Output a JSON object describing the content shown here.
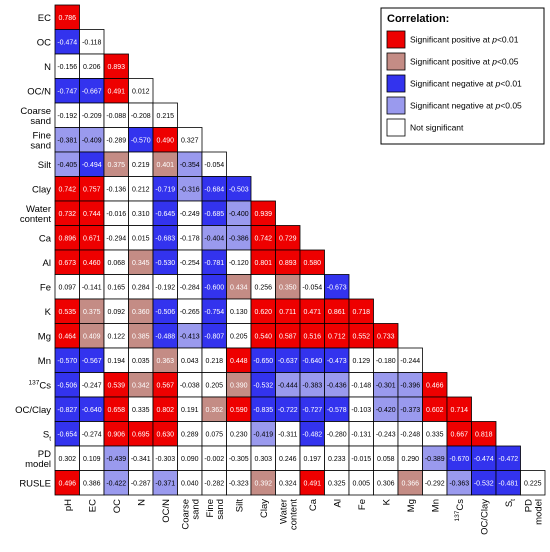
{
  "chart_data": {
    "type": "heatmap",
    "title": "",
    "row_labels": [
      "EC",
      "OC",
      "N",
      "OC/N",
      "Coarse sand",
      "Fine sand",
      "Silt",
      "Clay",
      "Water content",
      "Ca",
      "Al",
      "Fe",
      "K",
      "Mg",
      "Mn",
      "137Cs",
      "OC/Clay",
      "St",
      "PD model",
      "RUSLE"
    ],
    "col_labels": [
      "pH",
      "EC",
      "OC",
      "N",
      "OC/N",
      "Coarse sand",
      "Fine sand",
      "Silt",
      "Clay",
      "Water content",
      "Ca",
      "Al",
      "Fe",
      "K",
      "Mg",
      "Mn",
      "137Cs",
      "OC/Clay",
      "St",
      "PD model"
    ],
    "values": [
      [
        "0.786"
      ],
      [
        "-0.474",
        "-0.118"
      ],
      [
        "-0.156",
        "0.206",
        "0.893"
      ],
      [
        "-0.747",
        "-0.667",
        "0.491",
        "0.012"
      ],
      [
        "-0.192",
        "-0.209",
        "-0.088",
        "-0.208",
        "0.215"
      ],
      [
        "-0.381",
        "-0.409",
        "-0.289",
        "-0.570",
        "0.490",
        "0.327"
      ],
      [
        "-0.405",
        "-0.494",
        "0.375",
        "0.219",
        "0.401",
        "-0.354",
        "-0.054"
      ],
      [
        "0.742",
        "0.757",
        "-0.136",
        "0.212",
        "-0.719",
        "-0.316",
        "-0.684",
        "-0.503"
      ],
      [
        "0.732",
        "0.744",
        "-0.016",
        "0.310",
        "-0.645",
        "-0.249",
        "-0.685",
        "-0.400",
        "0.939"
      ],
      [
        "0.896",
        "0.671",
        "-0.294",
        "0.015",
        "-0.683",
        "-0.178",
        "-0.404",
        "-0.386",
        "0.742",
        "0.729"
      ],
      [
        "0.673",
        "0.460",
        "0.068",
        "0.345",
        "-0.530",
        "-0.254",
        "-0.781",
        "-0.120",
        "0.801",
        "0.893",
        "0.580"
      ],
      [
        "0.097",
        "-0.141",
        "0.165",
        "0.284",
        "-0.192",
        "-0.284",
        "-0.600",
        "0.434",
        "0.256",
        "0.350",
        "-0.054",
        "-0.673"
      ],
      [
        "0.535",
        "0.375",
        "0.092",
        "0.360",
        "-0.506",
        "-0.265",
        "-0.754",
        "0.130",
        "0.620",
        "0.711",
        "0.471",
        "0.861",
        "0.718"
      ],
      [
        "0.464",
        "0.409",
        "0.122",
        "0.385",
        "-0.488",
        "-0.413",
        "-0.807",
        "0.205",
        "0.540",
        "0.587",
        "0.516",
        "0.712",
        "0.552",
        "0.733"
      ],
      [
        "-0.570",
        "-0.567",
        "0.194",
        "0.035",
        "0.363",
        "0.043",
        "0.218",
        "0.448",
        "-0.650",
        "-0.637",
        "-0.640",
        "-0.473",
        "0.129",
        "-0.180",
        "-0.244"
      ],
      [
        "-0.506",
        "-0.247",
        "0.539",
        "0.342",
        "0.567",
        "-0.038",
        "0.205",
        "0.390",
        "-0.532",
        "-0.444",
        "-0.383",
        "-0.436",
        "-0.148",
        "-0.301",
        "-0.396",
        "0.466"
      ],
      [
        "-0.827",
        "-0.640",
        "0.658",
        "0.335",
        "0.802",
        "0.191",
        "0.362",
        "0.590",
        "-0.835",
        "-0.722",
        "-0.727",
        "-0.578",
        "-0.103",
        "-0.420",
        "-0.373",
        "0.602",
        "0.714"
      ],
      [
        "-0.654",
        "-0.274",
        "0.906",
        "0.695",
        "0.630",
        "0.289",
        "0.075",
        "0.230",
        "-0.419",
        "-0.311",
        "-0.482",
        "-0.280",
        "-0.131",
        "-0.243",
        "-0.248",
        "0.335",
        "0.667",
        "0.818"
      ],
      [
        "0.302",
        "0.109",
        "-0.439",
        "-0.341",
        "-0.303",
        "0.090",
        "-0.002",
        "-0.305",
        "0.303",
        "0.246",
        "0.197",
        "0.233",
        "-0.015",
        "0.058",
        "0.290",
        "-0.389",
        "-0.670",
        "-0.474",
        "-0.472"
      ],
      [
        "0.496",
        "0.386",
        "-0.422",
        "-0.287",
        "-0.371",
        "0.040",
        "-0.282",
        "-0.323",
        "0.392",
        "0.324",
        "0.491",
        "0.325",
        "0.005",
        "0.306",
        "0.366",
        "-0.292",
        "-0.363",
        "-0.532",
        "-0.481",
        "0.225"
      ]
    ],
    "significance": [
      [
        "P1"
      ],
      [
        "N1",
        "S"
      ],
      [
        "S",
        "S",
        "P1"
      ],
      [
        "N1",
        "N1",
        "P1",
        "S"
      ],
      [
        "S",
        "S",
        "S",
        "S",
        "S"
      ],
      [
        "N5",
        "N5",
        "S",
        "N1",
        "P1",
        "S"
      ],
      [
        "N5",
        "N1",
        "P5",
        "S",
        "P5",
        "N5",
        "S"
      ],
      [
        "P1",
        "P1",
        "S",
        "S",
        "N1",
        "N5",
        "N1",
        "N1"
      ],
      [
        "P1",
        "P1",
        "S",
        "S",
        "N1",
        "S",
        "N1",
        "N5",
        "P1"
      ],
      [
        "P1",
        "P1",
        "S",
        "S",
        "N1",
        "S",
        "N5",
        "N5",
        "P1",
        "P1"
      ],
      [
        "P1",
        "P1",
        "S",
        "P5",
        "N1",
        "S",
        "N1",
        "S",
        "P1",
        "P1",
        "P1"
      ],
      [
        "S",
        "S",
        "S",
        "S",
        "S",
        "S",
        "N1",
        "P5",
        "S",
        "P5",
        "S",
        "N1"
      ],
      [
        "P1",
        "P5",
        "S",
        "P5",
        "N1",
        "S",
        "N1",
        "S",
        "P1",
        "P1",
        "P1",
        "P1",
        "P1"
      ],
      [
        "P1",
        "P5",
        "S",
        "P5",
        "N1",
        "N5",
        "N1",
        "S",
        "P1",
        "P1",
        "P1",
        "P1",
        "P1",
        "P1"
      ],
      [
        "N1",
        "N1",
        "S",
        "S",
        "P5",
        "S",
        "S",
        "P1",
        "N1",
        "N1",
        "N1",
        "N1",
        "S",
        "S",
        "S"
      ],
      [
        "N1",
        "S",
        "P1",
        "P5",
        "P1",
        "S",
        "S",
        "P5",
        "N1",
        "N5",
        "N5",
        "N5",
        "S",
        "N5",
        "N5",
        "P1"
      ],
      [
        "N1",
        "N1",
        "P1",
        "S",
        "P1",
        "S",
        "P5",
        "P1",
        "N1",
        "N1",
        "N1",
        "N1",
        "S",
        "N5",
        "N5",
        "P1",
        "P1"
      ],
      [
        "N1",
        "S",
        "P1",
        "P1",
        "P1",
        "S",
        "S",
        "S",
        "N5",
        "S",
        "N1",
        "S",
        "S",
        "S",
        "S",
        "S",
        "P1",
        "P1"
      ],
      [
        "S",
        "S",
        "N5",
        "S",
        "S",
        "S",
        "S",
        "S",
        "S",
        "S",
        "S",
        "S",
        "S",
        "S",
        "S",
        "N5",
        "N1",
        "N1",
        "N1"
      ],
      [
        "P1",
        "S",
        "N5",
        "S",
        "N5",
        "S",
        "S",
        "S",
        "P5",
        "S",
        "P1",
        "S",
        "S",
        "S",
        "P5",
        "S",
        "N5",
        "N1",
        "N1",
        "S"
      ]
    ],
    "colors": {
      "P1": "#ee0000",
      "P5": "#c48c85",
      "N1": "#3333ee",
      "N5": "#9a9aee",
      "S": "#ffffff"
    },
    "legend": {
      "title": "Correlation:",
      "placement": "top-right",
      "items": [
        {
          "key": "P1",
          "label_pre": "Significant positive at ",
          "label_em": "p",
          "label_post": "<0.01"
        },
        {
          "key": "P5",
          "label_pre": "Significant positive at ",
          "label_em": "p",
          "label_post": "<0.05"
        },
        {
          "key": "N1",
          "label_pre": "Significant negative at ",
          "label_em": "p",
          "label_post": "<0.01"
        },
        {
          "key": "N5",
          "label_pre": "Significant negative at ",
          "label_em": "p",
          "label_post": "<0.05"
        },
        {
          "key": "S",
          "label_pre": "Not significant",
          "label_em": "",
          "label_post": ""
        }
      ]
    }
  }
}
